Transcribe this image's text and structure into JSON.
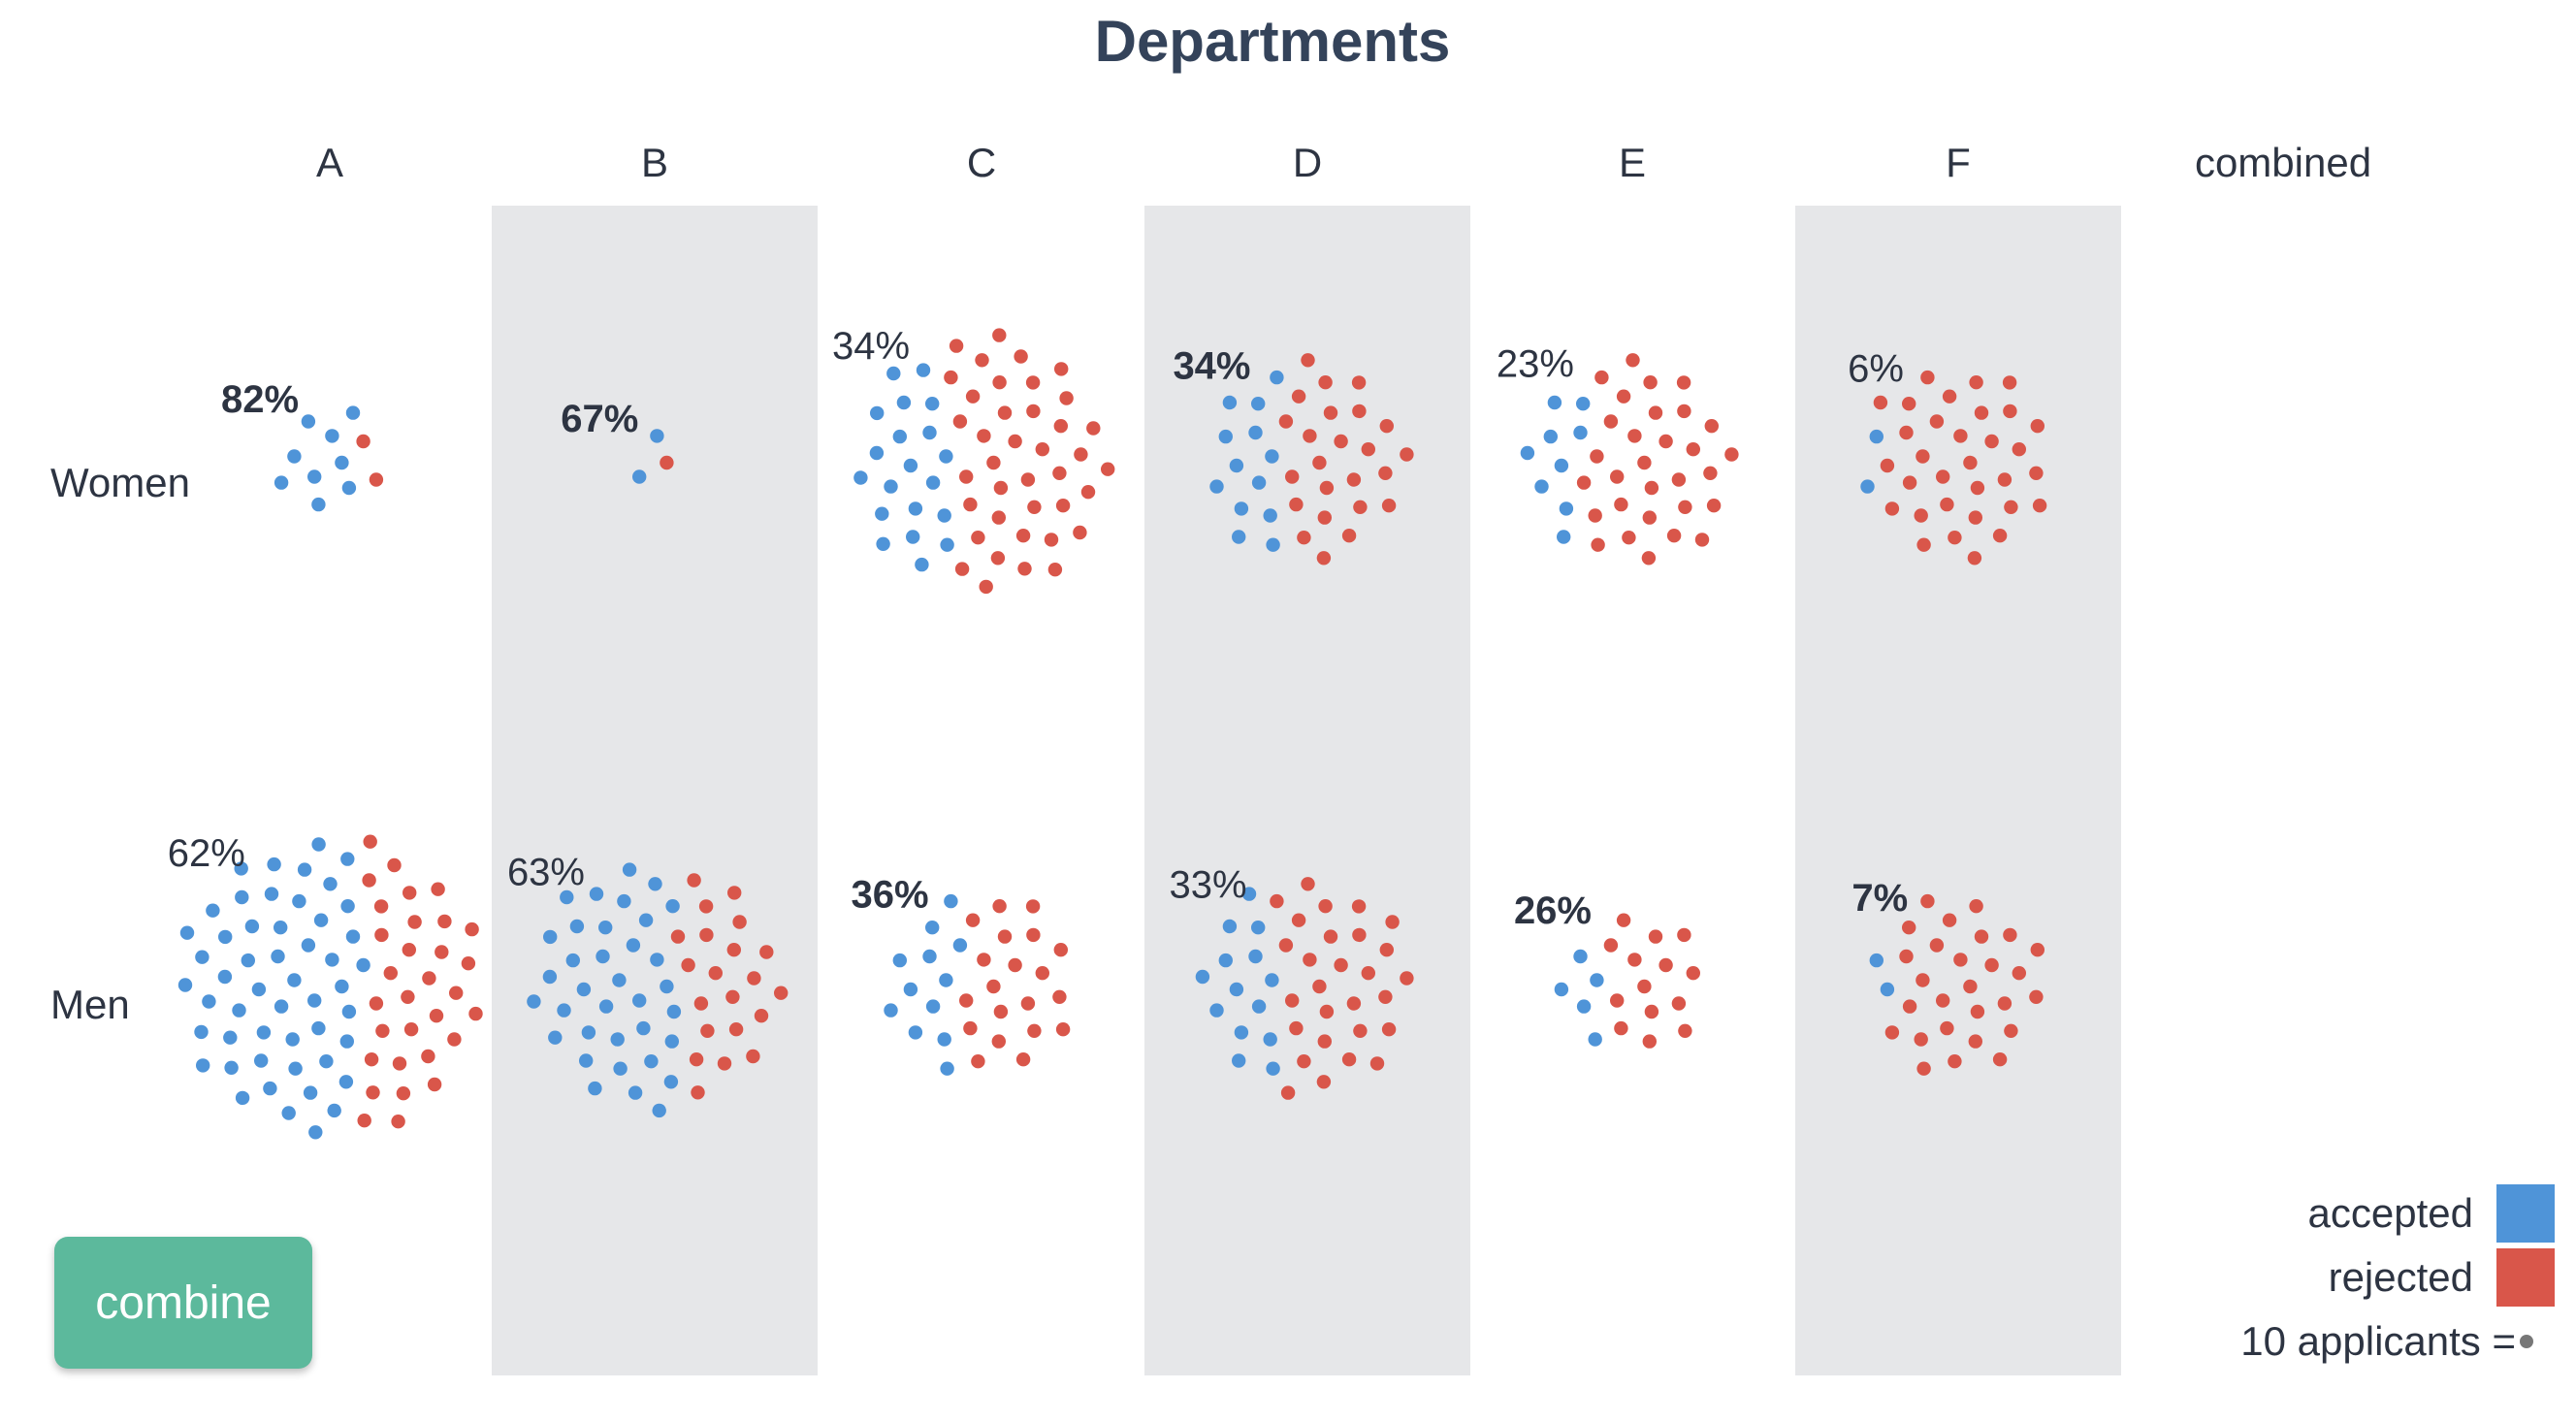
{
  "title": "Departments",
  "button": {
    "combine_label": "combine"
  },
  "legend": {
    "accepted_label": "accepted",
    "rejected_label": "rejected",
    "unit_label": "10 applicants =",
    "accepted_color": "#4f94d8",
    "rejected_color": "#d9564a",
    "unit_dot_color": "#777777"
  },
  "chart_data": {
    "type": "dot-cluster",
    "title": "Departments",
    "columns": [
      "A",
      "B",
      "C",
      "D",
      "E",
      "F",
      "combined"
    ],
    "rows": [
      "Women",
      "Men"
    ],
    "shaded_columns": [
      "B",
      "D",
      "F"
    ],
    "shade_color": "#e6e7e9",
    "unit": "10 applicants",
    "series": [
      {
        "name": "Women",
        "cells": [
          {
            "column": "A",
            "acceptance": "82%",
            "bold": true,
            "accepted_dots": 9,
            "rejected_dots": 2
          },
          {
            "column": "B",
            "acceptance": "67%",
            "bold": true,
            "accepted_dots": 2,
            "rejected_dots": 1
          },
          {
            "column": "C",
            "acceptance": "34%",
            "bold": false,
            "accepted_dots": 20,
            "rejected_dots": 39
          },
          {
            "column": "D",
            "acceptance": "34%",
            "bold": true,
            "accepted_dots": 13,
            "rejected_dots": 24
          },
          {
            "column": "E",
            "acceptance": "23%",
            "bold": false,
            "accepted_dots": 9,
            "rejected_dots": 30
          },
          {
            "column": "F",
            "acceptance": "6%",
            "bold": false,
            "accepted_dots": 2,
            "rejected_dots": 32
          }
        ]
      },
      {
        "name": "Men",
        "cells": [
          {
            "column": "A",
            "acceptance": "62%",
            "bold": false,
            "accepted_dots": 51,
            "rejected_dots": 31
          },
          {
            "column": "B",
            "acceptance": "63%",
            "bold": false,
            "accepted_dots": 35,
            "rejected_dots": 21
          },
          {
            "column": "C",
            "acceptance": "36%",
            "bold": true,
            "accepted_dots": 12,
            "rejected_dots": 20
          },
          {
            "column": "D",
            "acceptance": "33%",
            "bold": false,
            "accepted_dots": 14,
            "rejected_dots": 28
          },
          {
            "column": "E",
            "acceptance": "26%",
            "bold": true,
            "accepted_dots": 5,
            "rejected_dots": 14
          },
          {
            "column": "F",
            "acceptance": "7%",
            "bold": true,
            "accepted_dots": 2,
            "rejected_dots": 27
          }
        ]
      }
    ]
  }
}
